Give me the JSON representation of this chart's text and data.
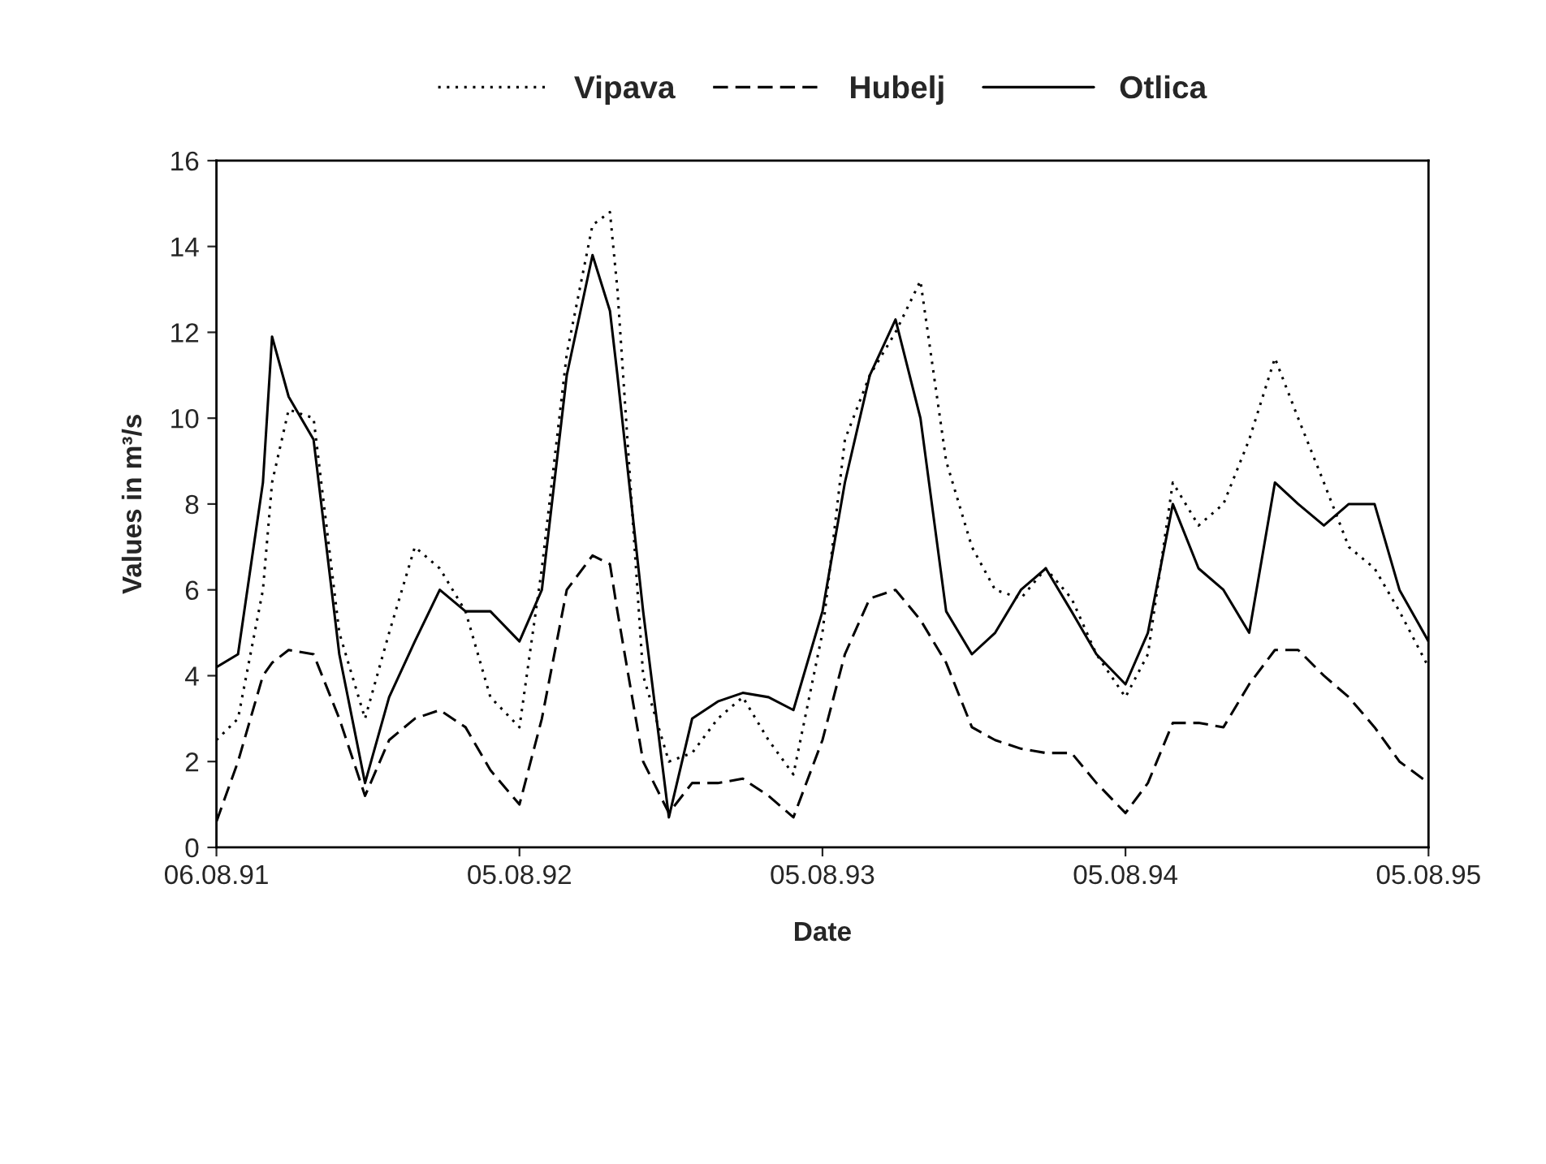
{
  "chart_data": {
    "type": "line",
    "xlabel": "Date",
    "ylabel": "Values in m³/s",
    "x": [
      "1991-08-06",
      "1991-09-01",
      "1991-10-01",
      "1991-10-12",
      "1991-11-01",
      "1991-12-01",
      "1992-01-01",
      "1992-02-01",
      "1992-03-01",
      "1992-04-01",
      "1992-05-01",
      "1992-06-01",
      "1992-07-01",
      "1992-08-05",
      "1992-09-01",
      "1992-10-01",
      "1992-11-01",
      "1992-11-22",
      "1992-12-01",
      "1993-01-01",
      "1993-02-01",
      "1993-03-01",
      "1993-04-01",
      "1993-05-01",
      "1993-06-01",
      "1993-07-01",
      "1993-08-05",
      "1993-09-01",
      "1993-10-01",
      "1993-11-01",
      "1993-12-01",
      "1994-01-01",
      "1994-02-01",
      "1994-03-01",
      "1994-04-01",
      "1994-05-01",
      "1994-06-01",
      "1994-07-01",
      "1994-08-05",
      "1994-09-01",
      "1994-10-01",
      "1994-11-01",
      "1994-12-01",
      "1995-01-01",
      "1995-02-01",
      "1995-03-01",
      "1995-04-01",
      "1995-05-01",
      "1995-06-01",
      "1995-07-01",
      "1995-08-05"
    ],
    "series": [
      {
        "name": "Vipava",
        "color": "#000000",
        "line_style": "dotted",
        "values": [
          2.5,
          3.0,
          6.0,
          8.5,
          10.2,
          10.0,
          5.0,
          3.0,
          5.0,
          7.0,
          6.5,
          5.5,
          3.5,
          2.8,
          6.5,
          11.5,
          14.5,
          14.8,
          13.0,
          4.0,
          2.0,
          2.2,
          3.0,
          3.5,
          2.5,
          1.7,
          5.0,
          9.5,
          11.0,
          12.0,
          13.2,
          9.0,
          7.0,
          6.0,
          5.8,
          6.5,
          5.8,
          4.5,
          3.5,
          4.5,
          8.5,
          7.5,
          8.0,
          9.5,
          11.4,
          10.0,
          8.5,
          7.0,
          6.5,
          5.5,
          4.2
        ]
      },
      {
        "name": "Hubelj",
        "color": "#000000",
        "line_style": "dashed",
        "values": [
          0.6,
          2.0,
          4.0,
          4.3,
          4.6,
          4.5,
          3.0,
          1.2,
          2.5,
          3.0,
          3.2,
          2.8,
          1.8,
          1.0,
          3.0,
          6.0,
          6.8,
          6.6,
          5.5,
          2.0,
          0.8,
          1.5,
          1.5,
          1.6,
          1.2,
          0.7,
          2.5,
          4.5,
          5.8,
          6.0,
          5.3,
          4.3,
          2.8,
          2.5,
          2.3,
          2.2,
          2.2,
          1.5,
          0.8,
          1.5,
          2.9,
          2.9,
          2.8,
          3.8,
          4.6,
          4.6,
          4.0,
          3.5,
          2.8,
          2.0,
          1.5
        ]
      },
      {
        "name": "Otlica",
        "color": "#000000",
        "line_style": "solid",
        "values": [
          4.2,
          4.5,
          8.5,
          11.9,
          10.5,
          9.5,
          4.5,
          1.5,
          3.5,
          4.8,
          6.0,
          5.5,
          5.5,
          4.8,
          6.0,
          11.0,
          13.8,
          12.5,
          11.0,
          5.5,
          0.7,
          3.0,
          3.4,
          3.6,
          3.5,
          3.2,
          5.5,
          8.5,
          11.0,
          12.3,
          10.0,
          5.5,
          4.5,
          5.0,
          6.0,
          6.5,
          5.5,
          4.5,
          3.8,
          5.0,
          8.0,
          6.5,
          6.0,
          5.0,
          8.5,
          8.0,
          7.5,
          8.0,
          8.0,
          6.0,
          4.8
        ]
      }
    ],
    "xlim": [
      "1991-08-06",
      "1995-08-05"
    ],
    "xticks": [
      {
        "value": "1991-08-06",
        "label": "06.08.91"
      },
      {
        "value": "1992-08-05",
        "label": "05.08.92"
      },
      {
        "value": "1993-08-05",
        "label": "05.08.93"
      },
      {
        "value": "1994-08-05",
        "label": "05.08.94"
      },
      {
        "value": "1995-08-05",
        "label": "05.08.95"
      }
    ],
    "ylim": [
      0,
      16
    ],
    "yticks": [
      0,
      2,
      4,
      6,
      8,
      10,
      12,
      14,
      16
    ],
    "legend": "top"
  }
}
